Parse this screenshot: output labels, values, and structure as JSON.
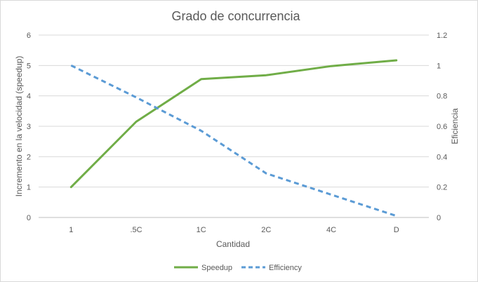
{
  "chart_data": {
    "type": "line",
    "title": "Grado de concurrencia",
    "xlabel": "Cantidad",
    "ylabel": "Incremento en la velocidad (speedup)",
    "y2label": "Eficiencia",
    "categories": [
      "1",
      ".5C",
      "1C",
      "2C",
      "4C",
      "D"
    ],
    "ylim": [
      0,
      6
    ],
    "y2lim": [
      0,
      1.2
    ],
    "yticks": [
      "0",
      "1",
      "2",
      "3",
      "4",
      "5",
      "6"
    ],
    "y2ticks": [
      "0",
      "0.2",
      "0.4",
      "0.6",
      "0.8",
      "1",
      "1.2"
    ],
    "grid": true,
    "legend_position": "bottom",
    "series": [
      {
        "name": "Speedup",
        "axis": "left",
        "values": [
          1,
          3.15,
          4.55,
          4.68,
          4.98,
          5.17
        ],
        "color": "#70ad47",
        "style": "solid"
      },
      {
        "name": "Efficiency",
        "axis": "right",
        "values": [
          1,
          0.79,
          0.57,
          0.29,
          0.15,
          0.01
        ],
        "color": "#5b9bd5",
        "style": "dashed"
      }
    ]
  }
}
